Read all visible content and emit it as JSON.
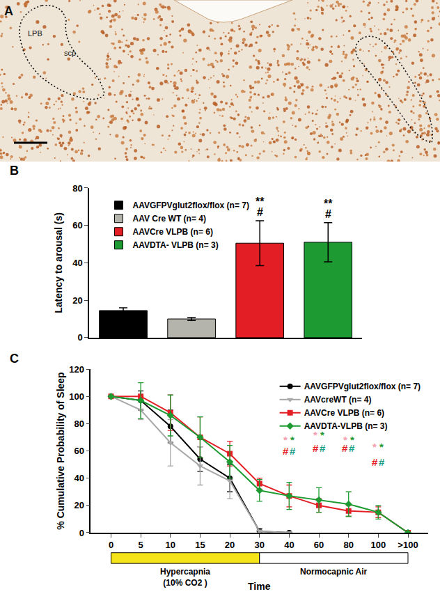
{
  "panel_labels": [
    "A",
    "B",
    "C"
  ],
  "panel_a": {
    "labels": [
      "LPB",
      "scp"
    ]
  },
  "chart_data": [
    {
      "type": "bar",
      "ylabel": "Latency to arousal (s)",
      "categories": [
        null,
        null,
        null,
        null
      ],
      "series": [
        {
          "name": "AAVGFPVglut2flox/flox (n= 7)",
          "color": "#000000",
          "values": [
            14.5,
            null,
            null,
            null
          ],
          "errors": [
            1.5,
            null,
            null,
            null
          ]
        },
        {
          "name": "AAV Cre WT (n= 4)",
          "color": "#b4b4ac",
          "values": [
            null,
            10,
            null,
            null
          ],
          "errors": [
            null,
            0.8,
            null,
            null
          ]
        },
        {
          "name": "AAVCre VLPB (n= 6)",
          "color": "#e31e24",
          "values": [
            null,
            null,
            50.5,
            null
          ],
          "errors": [
            null,
            null,
            12,
            null
          ]
        },
        {
          "name": "AAVDTA- VLPB (n= 3)",
          "color": "#1e9a32",
          "values": [
            null,
            null,
            null,
            51
          ],
          "errors": [
            null,
            null,
            null,
            10.5
          ]
        }
      ],
      "ylim": [
        0,
        80
      ],
      "yticks": [
        0,
        20,
        40,
        60,
        80
      ],
      "tick_labels": "y",
      "legend": "top left",
      "annotations": [
        {
          "text": "#",
          "x": 2
        },
        {
          "text": "**",
          "x": 2
        },
        {
          "text": "#",
          "x": 3
        },
        {
          "text": "**",
          "x": 3
        }
      ]
    },
    {
      "type": "line",
      "xlabel": "Time",
      "ylabel": "% Cumulative Probability of Sleep",
      "categories": [
        "0",
        "5",
        "10",
        "15",
        "20",
        "30",
        "40",
        "60",
        "80",
        "100",
        ">100"
      ],
      "series": [
        {
          "name": "AAVGFPVglut2flox/flox (n= 7)",
          "color": "#000000",
          "marker": "circle",
          "values": [
            100,
            97,
            78,
            54,
            40,
            1,
            0,
            null,
            null,
            null,
            null
          ],
          "errors": [
            0,
            7,
            12,
            9,
            10,
            2,
            0,
            null,
            null,
            null,
            null
          ]
        },
        {
          "name": "AAVcreWT (n= 4)",
          "color": "#a8a8a8",
          "marker": "triangle-down",
          "values": [
            100,
            90,
            66,
            49,
            38,
            1,
            0,
            null,
            null,
            null,
            null
          ],
          "errors": [
            0,
            7,
            17,
            14,
            13,
            1,
            0,
            null,
            null,
            null,
            null
          ]
        },
        {
          "name": "AAVCre VLPB (n= 6)",
          "color": "#e31e24",
          "marker": "square",
          "values": [
            100,
            100,
            88,
            70,
            58,
            36,
            27,
            20,
            16,
            15,
            0
          ],
          "errors": [
            0,
            0,
            13,
            15,
            9,
            4,
            8,
            5,
            4,
            4,
            0
          ]
        },
        {
          "name": "AAVDTA-VLPB (n= 3)",
          "color": "#1e9a32",
          "marker": "diamond",
          "values": [
            100,
            97,
            86,
            70,
            52,
            31,
            27,
            24,
            21,
            15,
            0
          ],
          "errors": [
            0,
            13,
            15,
            15,
            12,
            8,
            10,
            9,
            9,
            5,
            0
          ]
        }
      ],
      "ylim": [
        0,
        120
      ],
      "yticks": [
        0,
        20,
        40,
        60,
        80,
        100,
        120
      ],
      "legend": "top right",
      "annotations": [
        {
          "text": "*",
          "color": "#f4a0b0",
          "x": 6,
          "y": 68
        },
        {
          "text": "*",
          "color": "#1e9a32",
          "x": 6,
          "y": 68
        },
        {
          "text": "#",
          "color": "#e31e24",
          "x": 6,
          "y": 60
        },
        {
          "text": "#",
          "color": "#1aa08c",
          "x": 6,
          "y": 60
        },
        {
          "text": "*",
          "color": "#f4a0b0",
          "x": 7,
          "y": 72
        },
        {
          "text": "*",
          "color": "#1e9a32",
          "x": 7,
          "y": 72
        },
        {
          "text": "#",
          "color": "#e31e24",
          "x": 7,
          "y": 62
        },
        {
          "text": "#",
          "color": "#1aa08c",
          "x": 7,
          "y": 62
        },
        {
          "text": "*",
          "color": "#f4a0b0",
          "x": 8,
          "y": 68
        },
        {
          "text": "*",
          "color": "#1e9a32",
          "x": 8,
          "y": 68
        },
        {
          "text": "#",
          "color": "#e31e24",
          "x": 8,
          "y": 62
        },
        {
          "text": "#",
          "color": "#1aa08c",
          "x": 8,
          "y": 62
        },
        {
          "text": "*",
          "color": "#f4a0b0",
          "x": 9,
          "y": 63
        },
        {
          "text": "*",
          "color": "#1e9a32",
          "x": 9,
          "y": 63
        },
        {
          "text": "#",
          "color": "#e31e24",
          "x": 9,
          "y": 52
        },
        {
          "text": "#",
          "color": "#1aa08c",
          "x": 9,
          "y": 52
        }
      ],
      "bands": [
        {
          "lines": [
            "Hypercapnia",
            "(10% CO2 )"
          ],
          "from": 0,
          "to": 5,
          "color": "#f5e41a"
        },
        {
          "lines": [
            "Normocapnic Air"
          ],
          "from": 5,
          "to": 10,
          "color": "#ffffff"
        }
      ]
    }
  ]
}
